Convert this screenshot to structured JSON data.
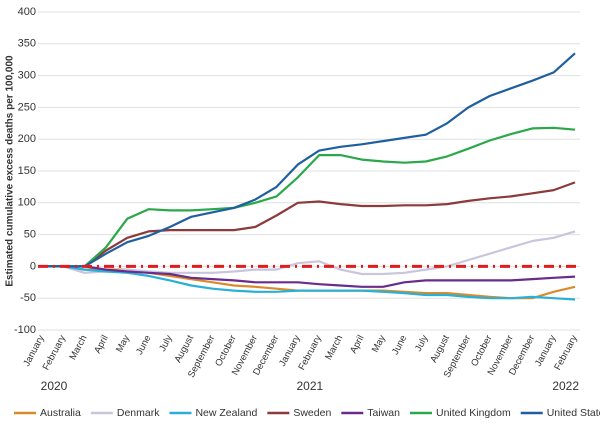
{
  "chart_data": {
    "type": "line",
    "y_label": "Estimated cumulative excess deaths per 100,000",
    "categories": [
      "January",
      "February",
      "March",
      "April",
      "May",
      "June",
      "July",
      "August",
      "September",
      "October",
      "November",
      "December",
      "January",
      "February",
      "March",
      "April",
      "May",
      "June",
      "July",
      "August",
      "September",
      "October",
      "November",
      "December",
      "January",
      "February"
    ],
    "year_labels": [
      "2020",
      "2021",
      "2022"
    ],
    "series": [
      {
        "name": "Australia",
        "color": "#d98b2b",
        "values": [
          0,
          0,
          -5,
          -5,
          -5,
          -10,
          -15,
          -20,
          -25,
          -30,
          -32,
          -35,
          -38,
          -38,
          -38,
          -38,
          -38,
          -40,
          -42,
          -42,
          -45,
          -48,
          -50,
          -50,
          -40,
          -32
        ]
      },
      {
        "name": "Denmark",
        "color": "#c9c5dd",
        "values": [
          0,
          0,
          -10,
          -8,
          -5,
          -8,
          -10,
          -10,
          -10,
          -8,
          -5,
          -5,
          5,
          8,
          -5,
          -12,
          -12,
          -10,
          -5,
          0,
          10,
          20,
          30,
          40,
          45,
          55
        ]
      },
      {
        "name": "New Zealand",
        "color": "#2ab0d6",
        "values": [
          0,
          0,
          -5,
          -8,
          -10,
          -15,
          -22,
          -30,
          -35,
          -38,
          -40,
          -40,
          -38,
          -38,
          -38,
          -38,
          -40,
          -42,
          -45,
          -45,
          -48,
          -50,
          -50,
          -48,
          -50,
          -52
        ]
      },
      {
        "name": "Sweden",
        "color": "#8c3a3a",
        "values": [
          0,
          0,
          0,
          25,
          45,
          55,
          57,
          57,
          57,
          57,
          62,
          80,
          100,
          102,
          98,
          95,
          95,
          96,
          96,
          98,
          103,
          107,
          110,
          115,
          120,
          132
        ]
      },
      {
        "name": "Taiwan",
        "color": "#6a2c8c",
        "values": [
          0,
          0,
          0,
          -5,
          -8,
          -10,
          -12,
          -18,
          -20,
          -22,
          -25,
          -25,
          -25,
          -28,
          -30,
          -32,
          -32,
          -25,
          -22,
          -22,
          -22,
          -22,
          -22,
          -20,
          -18,
          -16
        ]
      },
      {
        "name": "United Kingdom",
        "color": "#2aa84a",
        "values": [
          0,
          0,
          0,
          30,
          75,
          90,
          88,
          88,
          90,
          92,
          100,
          110,
          140,
          175,
          175,
          168,
          165,
          163,
          165,
          173,
          185,
          198,
          208,
          217,
          218,
          215
        ]
      },
      {
        "name": "United States",
        "color": "#1f5fa0",
        "values": [
          0,
          0,
          0,
          20,
          38,
          48,
          62,
          78,
          85,
          92,
          105,
          125,
          160,
          182,
          188,
          192,
          197,
          202,
          207,
          225,
          250,
          268,
          280,
          292,
          305,
          335
        ]
      }
    ],
    "baseline": {
      "value": 0,
      "color": "#e41a1c"
    },
    "ylim": [
      -100,
      400
    ],
    "yticks": [
      -100,
      -50,
      0,
      50,
      100,
      150,
      200,
      250,
      300,
      350,
      400
    ],
    "grid": true
  }
}
